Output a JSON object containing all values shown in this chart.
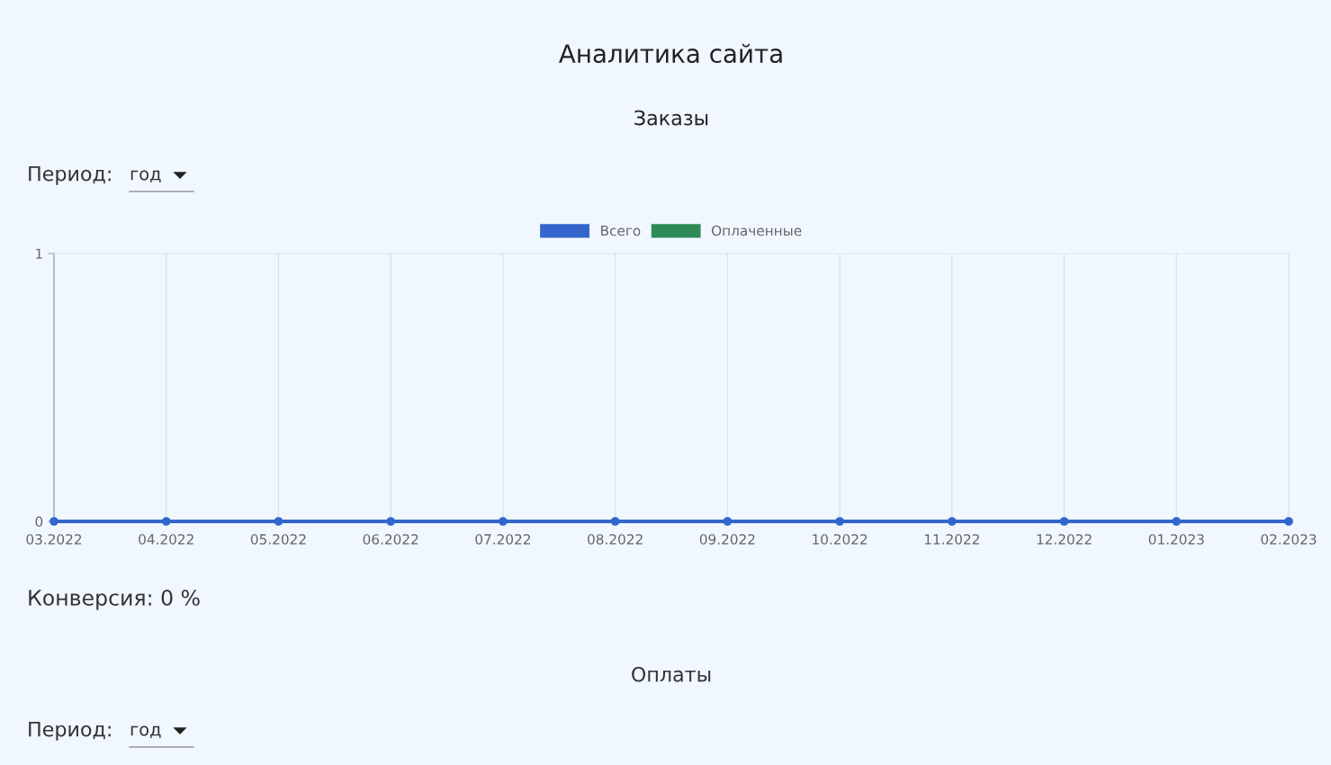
{
  "chart_data": {
    "type": "line",
    "title": "Аналитика сайта",
    "subtitle": "Заказы",
    "categories": [
      "03.2022",
      "04.2022",
      "05.2022",
      "06.2022",
      "07.2022",
      "08.2022",
      "09.2022",
      "10.2022",
      "11.2022",
      "12.2022",
      "01.2023",
      "02.2023"
    ],
    "series": [
      {
        "name": "Всего",
        "color": "#3366cc",
        "values": [
          0,
          0,
          0,
          0,
          0,
          0,
          0,
          0,
          0,
          0,
          0,
          0
        ]
      },
      {
        "name": "Оплаченные",
        "color": "#2e8b57",
        "values": [
          null,
          null,
          null,
          null,
          null,
          null,
          null,
          null,
          null,
          null,
          null,
          null
        ]
      }
    ],
    "ylim": [
      0,
      1
    ],
    "yticks": [
      0,
      1
    ],
    "grid": "x",
    "legend": "top",
    "marker": "circle",
    "line_style": "solid",
    "annotations": [
      "Период:",
      "год",
      "Конверсия: 0 %",
      "Оплаты",
      "Период:",
      "год"
    ]
  }
}
